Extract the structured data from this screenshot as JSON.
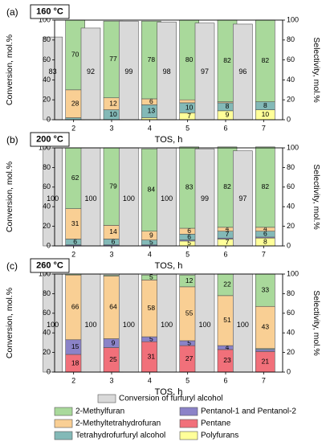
{
  "colors": {
    "conversion": "#d9d9d9",
    "2-Methylfuran": "#a9d99b",
    "2-Methyltetrahydrofuran": "#f9cf94",
    "Tetrahydrofurfuryl alcohol": "#83b9b7",
    "Pentanol-1 and Pentanol-2": "#8b83c8",
    "Pentane": "#f1707a",
    "Polyfurans": "#ffff99"
  },
  "legend": [
    {
      "key": "conversion",
      "label": "Conversion of furfuryl alcohol"
    },
    {
      "key": "2-Methylfuran",
      "label": "2-Methylfuran"
    },
    {
      "key": "Pentanol-1 and Pentanol-2",
      "label": "Pentanol-1 and Pentanol-2"
    },
    {
      "key": "2-Methyltetrahydrofuran",
      "label": "2-Methyltetrahydrofuran"
    },
    {
      "key": "Pentane",
      "label": "Pentane"
    },
    {
      "key": "Tetrahydrofurfuryl alcohol",
      "label": "Tetrahydrofurfuryl alcohol"
    },
    {
      "key": "Polyfurans",
      "label": "Polyfurans"
    }
  ],
  "chart_data": [
    {
      "type": "bar",
      "panel_label": "(a)",
      "temperature_label": "160 °C",
      "xlabel": "TOS, h",
      "ylabel_left": "Conversion, mol.%",
      "ylabel_right": "Selectivity, mol.%",
      "ylim": [
        0,
        100
      ],
      "yticks": [
        0,
        20,
        40,
        60,
        80,
        100
      ],
      "categories": [
        "2",
        "3",
        "4",
        "5",
        "6",
        "7"
      ],
      "conversion": {
        "name": "Conversion of furfuryl alcohol",
        "values": [
          83,
          92,
          99,
          98,
          97,
          96
        ],
        "labels": [
          "83",
          "92",
          "99",
          "98",
          "97",
          "96"
        ]
      },
      "selectivity_series": [
        {
          "name": "Polyfurans",
          "values": [
            0,
            0,
            2,
            7,
            9,
            10
          ],
          "labels": [
            "",
            "",
            "",
            "7",
            "9",
            "10"
          ]
        },
        {
          "name": "Pentane",
          "values": [
            0,
            0,
            0,
            0,
            0,
            0
          ],
          "labels": [
            "",
            "",
            "",
            "",
            "",
            ""
          ]
        },
        {
          "name": "Pentanol-1 and Pentanol-2",
          "values": [
            0,
            0,
            0,
            0,
            0,
            0
          ],
          "labels": [
            "",
            "",
            "",
            "",
            "",
            ""
          ]
        },
        {
          "name": "Tetrahydrofurfuryl alcohol",
          "values": [
            2,
            10,
            13,
            10,
            8,
            8
          ],
          "labels": [
            "",
            "10",
            "13",
            "10",
            "8",
            "8"
          ]
        },
        {
          "name": "2-Methyltetrahydrofuran",
          "values": [
            28,
            12,
            6,
            3,
            1,
            0
          ],
          "labels": [
            "28",
            "12",
            "6",
            "",
            "",
            ""
          ]
        },
        {
          "name": "2-Methylfuran",
          "values": [
            70,
            77,
            78,
            80,
            82,
            82
          ],
          "labels": [
            "70",
            "77",
            "78",
            "80",
            "82",
            "82"
          ]
        }
      ]
    },
    {
      "type": "bar",
      "panel_label": "(b)",
      "temperature_label": "200 °C",
      "xlabel": "TOS, h",
      "ylabel_left": "Conversion, mol.%",
      "ylabel_right": "Selectivity, mol.%",
      "ylim": [
        0,
        100
      ],
      "yticks": [
        0,
        20,
        40,
        60,
        80,
        100
      ],
      "categories": [
        "2",
        "3",
        "4",
        "5",
        "6",
        "7"
      ],
      "conversion": {
        "name": "Conversion of furfuryl alcohol",
        "values": [
          100,
          100,
          100,
          100,
          99,
          97
        ],
        "labels": [
          "100",
          "100",
          "100",
          "100",
          "99",
          "97"
        ]
      },
      "selectivity_series": [
        {
          "name": "Polyfurans",
          "values": [
            0,
            0,
            0,
            5,
            7,
            8
          ],
          "labels": [
            "",
            "",
            "",
            "5",
            "7",
            "8"
          ]
        },
        {
          "name": "Pentane",
          "values": [
            0,
            0,
            0,
            0,
            0,
            0
          ],
          "labels": [
            "",
            "",
            "",
            "",
            "",
            ""
          ]
        },
        {
          "name": "Pentanol-1 and Pentanol-2",
          "values": [
            1,
            1,
            1,
            1,
            1,
            1
          ],
          "labels": [
            "",
            "",
            "",
            "",
            "",
            ""
          ]
        },
        {
          "name": "Tetrahydrofurfuryl alcohol",
          "values": [
            6,
            6,
            5,
            6,
            7,
            6
          ],
          "labels": [
            "6",
            "6",
            "5",
            "6",
            "7",
            "6"
          ]
        },
        {
          "name": "2-Methyltetrahydrofuran",
          "values": [
            31,
            14,
            9,
            6,
            4,
            4
          ],
          "labels": [
            "31",
            "14",
            "9",
            "6",
            "4",
            "4"
          ]
        },
        {
          "name": "2-Methylfuran",
          "values": [
            62,
            79,
            84,
            83,
            82,
            82
          ],
          "labels": [
            "62",
            "79",
            "84",
            "83",
            "82",
            "82"
          ]
        }
      ]
    },
    {
      "type": "bar",
      "panel_label": "(c)",
      "temperature_label": "260 °C",
      "xlabel": "TOS, h",
      "ylabel_left": "Conversion, mol.%",
      "ylabel_right": "Selectivity, mol.%",
      "ylim": [
        0,
        100
      ],
      "yticks": [
        0,
        20,
        40,
        60,
        80,
        100
      ],
      "categories": [
        "2",
        "3",
        "4",
        "5",
        "6",
        "7"
      ],
      "conversion": {
        "name": "Conversion of furfuryl alcohol",
        "values": [
          100,
          100,
          100,
          100,
          100,
          100
        ],
        "labels": [
          "100",
          "100",
          "100",
          "100",
          "100",
          "100"
        ]
      },
      "selectivity_series": [
        {
          "name": "Polyfurans",
          "values": [
            0,
            0,
            0,
            0,
            0,
            0
          ],
          "labels": [
            "",
            "",
            "",
            "",
            "",
            ""
          ]
        },
        {
          "name": "Pentane",
          "values": [
            18,
            25,
            31,
            27,
            23,
            21
          ],
          "labels": [
            "18",
            "25",
            "31",
            "27",
            "23",
            "21"
          ]
        },
        {
          "name": "Pentanol-1 and Pentanol-2",
          "values": [
            15,
            9,
            5,
            5,
            4,
            2
          ],
          "labels": [
            "15",
            "9",
            "5",
            "5",
            "4",
            ""
          ]
        },
        {
          "name": "Tetrahydrofurfuryl alcohol",
          "values": [
            0,
            0,
            0,
            0,
            0,
            1
          ],
          "labels": [
            "",
            "",
            "",
            "",
            "",
            ""
          ]
        },
        {
          "name": "2-Methyltetrahydrofuran",
          "values": [
            66,
            64,
            58,
            55,
            51,
            43
          ],
          "labels": [
            "66",
            "64",
            "58",
            "55",
            "51",
            "43"
          ]
        },
        {
          "name": "2-Methylfuran",
          "values": [
            1,
            1,
            5,
            12,
            22,
            33
          ],
          "labels": [
            "",
            "",
            "5",
            "12",
            "22",
            "33"
          ]
        }
      ]
    }
  ]
}
